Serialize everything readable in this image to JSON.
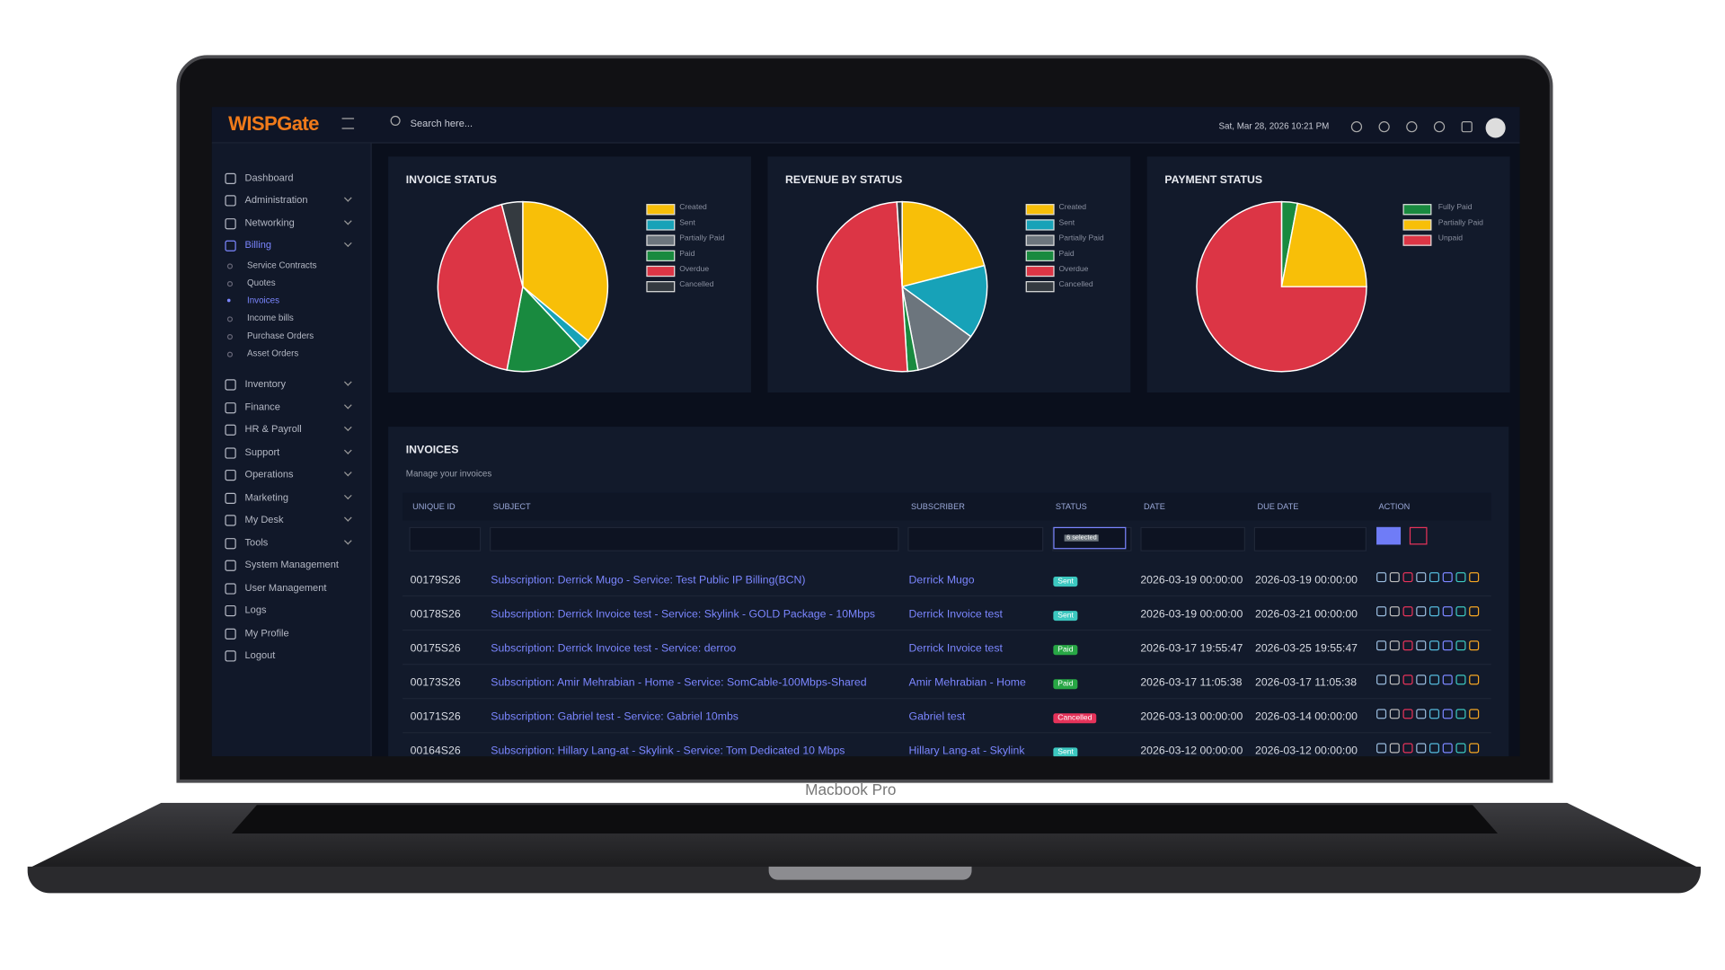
{
  "app": {
    "logo": "WISPGate",
    "search": "Search here...",
    "datetime": "Sat, Mar 28, 2026 10:21 PM"
  },
  "sidebar": {
    "items": [
      {
        "label": "Dashboard",
        "expandable": false,
        "active": false
      },
      {
        "label": "Administration",
        "expandable": true,
        "active": false
      },
      {
        "label": "Networking",
        "expandable": true,
        "active": false
      },
      {
        "label": "Billing",
        "expandable": true,
        "active": true,
        "children": [
          {
            "label": "Service Contracts",
            "active": false
          },
          {
            "label": "Quotes",
            "active": false
          },
          {
            "label": "Invoices",
            "active": true
          },
          {
            "label": "Income bills",
            "active": false
          },
          {
            "label": "Purchase Orders",
            "active": false
          },
          {
            "label": "Asset Orders",
            "active": false
          }
        ]
      },
      {
        "label": "Inventory",
        "expandable": true,
        "active": false
      },
      {
        "label": "Finance",
        "expandable": true,
        "active": false
      },
      {
        "label": "HR & Payroll",
        "expandable": true,
        "active": false
      },
      {
        "label": "Support",
        "expandable": true,
        "active": false
      },
      {
        "label": "Operations",
        "expandable": true,
        "active": false
      },
      {
        "label": "Marketing",
        "expandable": true,
        "active": false
      },
      {
        "label": "My Desk",
        "expandable": true,
        "active": false
      },
      {
        "label": "Tools",
        "expandable": true,
        "active": false
      },
      {
        "label": "System Management",
        "expandable": false,
        "active": false
      },
      {
        "label": "User Management",
        "expandable": false,
        "active": false
      },
      {
        "label": "Logs",
        "expandable": false,
        "active": false
      },
      {
        "label": "My Profile",
        "expandable": false,
        "active": false
      },
      {
        "label": "Logout",
        "expandable": false,
        "active": false
      }
    ]
  },
  "chart_data": [
    {
      "type": "pie",
      "title": "INVOICE STATUS",
      "categories": [
        "Created",
        "Sent",
        "Partially Paid",
        "Paid",
        "Overdue",
        "Cancelled"
      ],
      "values": [
        36,
        2,
        0,
        15,
        43,
        4
      ],
      "colors": [
        "#f8bf08",
        "#17a2b8",
        "#6c757d",
        "#198a3f",
        "#dc3545",
        "#343a40"
      ]
    },
    {
      "type": "pie",
      "title": "REVENUE BY STATUS",
      "categories": [
        "Created",
        "Sent",
        "Partially Paid",
        "Paid",
        "Overdue",
        "Cancelled"
      ],
      "values": [
        21,
        14,
        12,
        2,
        50,
        1
      ],
      "colors": [
        "#f8bf08",
        "#17a2b8",
        "#6c757d",
        "#198a3f",
        "#dc3545",
        "#343a40"
      ]
    },
    {
      "type": "pie",
      "title": "PAYMENT STATUS",
      "categories": [
        "Fully Paid",
        "Partially Paid",
        "Unpaid"
      ],
      "values": [
        3,
        22,
        75
      ],
      "colors": [
        "#198a3f",
        "#f8bf08",
        "#dc3545"
      ]
    }
  ],
  "invoices": {
    "title": "INVOICES",
    "subtitle": "Manage your invoices",
    "columns": [
      "UNIQUE ID",
      "SUBJECT",
      "SUBSCRIBER",
      "STATUS",
      "DATE",
      "DUE DATE",
      "ACTION"
    ],
    "filter": "6 selected",
    "rows": [
      {
        "id": "00179S26",
        "subject": "Subscription: Derrick Mugo - Service: Test Public IP Billing(BCN)",
        "subscriber": "Derrick Mugo",
        "status": "Sent",
        "status_color": "#3cc8c0",
        "date": "2026-03-19 00:00:00",
        "due_date": "2026-03-19 00:00:00"
      },
      {
        "id": "00178S26",
        "subject": "Subscription: Derrick Invoice test - Service: Skylink - GOLD Package - 10Mbps",
        "subscriber": "Derrick Invoice test",
        "status": "Sent",
        "status_color": "#3cc8c0",
        "date": "2026-03-19 00:00:00",
        "due_date": "2026-03-21 00:00:00"
      },
      {
        "id": "00175S26",
        "subject": "Subscription: Derrick Invoice test - Service: derroo",
        "subscriber": "Derrick Invoice test",
        "status": "Paid",
        "status_color": "#28a745",
        "date": "2026-03-17 19:55:47",
        "due_date": "2026-03-25 19:55:47"
      },
      {
        "id": "00173S26",
        "subject": "Subscription: Amir Mehrabian - Home - Service: SomCable-100Mbps-Shared",
        "subscriber": "Amir Mehrabian - Home",
        "status": "Paid",
        "status_color": "#28a745",
        "date": "2026-03-17 11:05:38",
        "due_date": "2026-03-17 11:05:38"
      },
      {
        "id": "00171S26",
        "subject": "Subscription: Gabriel test - Service: Gabriel 10mbs",
        "subscriber": "Gabriel test",
        "status": "Cancelled",
        "status_color": "#e6335a",
        "date": "2026-03-13 00:00:00",
        "due_date": "2026-03-14 00:00:00"
      },
      {
        "id": "00164S26",
        "subject": "Subscription: Hillary Lang-at - Skylink - Service: Tom Dedicated 10 Mbps",
        "subscriber": "Hillary Lang-at - Skylink",
        "status": "Sent",
        "status_color": "#3cc8c0",
        "date": "2026-03-12 00:00:00",
        "due_date": "2026-03-12 00:00:00"
      }
    ]
  },
  "device_label": "Macbook Pro"
}
